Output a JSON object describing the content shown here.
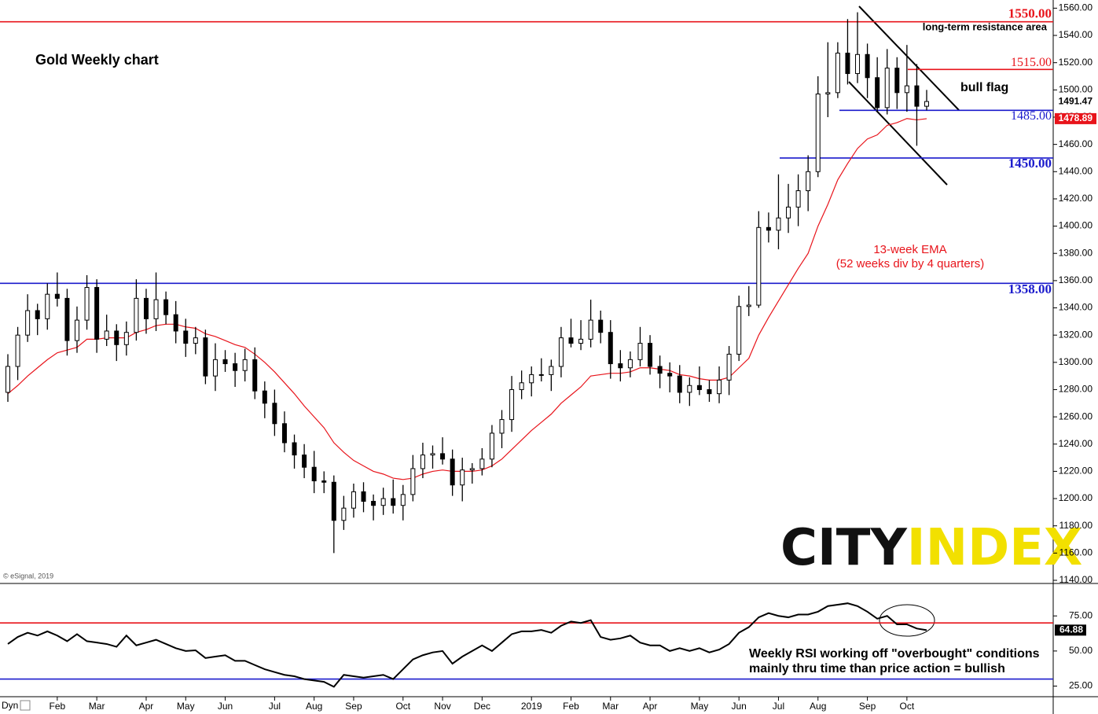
{
  "chart_data": [
    {
      "type": "candlestick",
      "title": "Gold Weekly chart",
      "categories": [
        null,
        null,
        null,
        null,
        null,
        "Feb",
        null,
        null,
        null,
        "Mar",
        null,
        null,
        null,
        null,
        "Apr",
        null,
        null,
        null,
        "May",
        null,
        null,
        null,
        "Jun",
        null,
        null,
        null,
        null,
        "Jul",
        null,
        null,
        null,
        "Aug",
        null,
        null,
        null,
        "Sep",
        null,
        null,
        null,
        null,
        "Oct",
        null,
        null,
        null,
        "Nov",
        null,
        null,
        null,
        "Dec",
        null,
        null,
        null,
        null,
        "2019",
        null,
        null,
        null,
        "Feb",
        null,
        null,
        null,
        "Mar",
        null,
        null,
        null,
        "Apr",
        null,
        null,
        null,
        null,
        "May",
        null,
        null,
        null,
        "Jun",
        null,
        null,
        null,
        "Jul",
        null,
        null,
        null,
        "Aug",
        null,
        null,
        null,
        null,
        "Sep",
        null,
        null,
        null,
        "Oct",
        null,
        null
      ],
      "open": [
        1278,
        1297,
        1320,
        1338,
        1332,
        1350,
        1347,
        1316,
        1331,
        1355,
        1317,
        1323,
        1313,
        1322,
        1347,
        1332,
        1346,
        1335,
        1323,
        1314,
        1318,
        1290,
        1302,
        1299,
        1294,
        1302,
        1279,
        1270,
        1255,
        1241,
        1232,
        1223,
        1213,
        1212,
        1184,
        1193,
        1205,
        1198,
        1195,
        1200,
        1195,
        1203,
        1222,
        1232,
        1233,
        1229,
        1210,
        1221,
        1222,
        1229,
        1248,
        1258,
        1280,
        1285,
        1291,
        1291,
        1297,
        1318,
        1314,
        1317,
        1331,
        1322,
        1299,
        1296,
        1302,
        1314,
        1297,
        1292,
        1290,
        1278,
        1283,
        1280,
        1277,
        1287,
        1306,
        1341,
        1342,
        1399,
        1397,
        1406,
        1414,
        1426,
        1440,
        1497,
        1498,
        1527,
        1512,
        1526,
        1509,
        1487,
        1516,
        1498,
        1503,
        1488
      ],
      "high": [
        1306,
        1326,
        1350,
        1343,
        1358,
        1366,
        1354,
        1341,
        1364,
        1361,
        1335,
        1328,
        1330,
        1361,
        1354,
        1366,
        1352,
        1345,
        1332,
        1326,
        1324,
        1314,
        1309,
        1307,
        1310,
        1311,
        1286,
        1280,
        1264,
        1247,
        1240,
        1235,
        1220,
        1217,
        1202,
        1211,
        1212,
        1203,
        1208,
        1214,
        1210,
        1232,
        1241,
        1239,
        1245,
        1236,
        1230,
        1226,
        1237,
        1254,
        1265,
        1290,
        1294,
        1297,
        1303,
        1302,
        1326,
        1332,
        1331,
        1346,
        1338,
        1331,
        1309,
        1308,
        1326,
        1320,
        1305,
        1300,
        1298,
        1289,
        1297,
        1287,
        1297,
        1312,
        1349,
        1356,
        1411,
        1410,
        1438,
        1431,
        1438,
        1452,
        1510,
        1535,
        1535,
        1552,
        1557,
        1534,
        1524,
        1530,
        1524,
        1533,
        1519,
        1500
      ],
      "low": [
        1271,
        1287,
        1315,
        1320,
        1324,
        1341,
        1305,
        1307,
        1324,
        1307,
        1312,
        1301,
        1305,
        1316,
        1321,
        1323,
        1328,
        1314,
        1304,
        1306,
        1284,
        1279,
        1293,
        1282,
        1286,
        1273,
        1259,
        1246,
        1234,
        1222,
        1215,
        1204,
        1204,
        1160,
        1177,
        1186,
        1190,
        1184,
        1188,
        1189,
        1184,
        1198,
        1215,
        1222,
        1225,
        1202,
        1198,
        1211,
        1217,
        1223,
        1237,
        1249,
        1273,
        1275,
        1286,
        1279,
        1289,
        1311,
        1309,
        1311,
        1314,
        1288,
        1286,
        1289,
        1297,
        1291,
        1281,
        1278,
        1270,
        1268,
        1276,
        1271,
        1270,
        1276,
        1301,
        1334,
        1340,
        1388,
        1383,
        1395,
        1400,
        1411,
        1436,
        1480,
        1494,
        1504,
        1505,
        1494,
        1484,
        1482,
        1486,
        1484,
        1459,
        1485
      ],
      "close": [
        1297,
        1320,
        1338,
        1332,
        1350,
        1347,
        1316,
        1331,
        1355,
        1317,
        1323,
        1313,
        1322,
        1347,
        1332,
        1346,
        1335,
        1323,
        1314,
        1318,
        1290,
        1302,
        1299,
        1294,
        1302,
        1279,
        1270,
        1255,
        1241,
        1232,
        1223,
        1213,
        1212,
        1184,
        1193,
        1205,
        1198,
        1195,
        1200,
        1195,
        1203,
        1222,
        1232,
        1233,
        1229,
        1210,
        1221,
        1222,
        1229,
        1248,
        1258,
        1280,
        1285,
        1291,
        1291,
        1297,
        1318,
        1314,
        1317,
        1331,
        1322,
        1299,
        1296,
        1302,
        1314,
        1297,
        1292,
        1290,
        1278,
        1283,
        1280,
        1277,
        1287,
        1306,
        1341,
        1342,
        1399,
        1397,
        1406,
        1414,
        1426,
        1440,
        1497,
        1498,
        1527,
        1512,
        1526,
        1509,
        1487,
        1516,
        1498,
        1503,
        1488,
        1491.47
      ],
      "ema": [
        1277,
        1283,
        1290,
        1296,
        1302,
        1307,
        1309,
        1311,
        1317,
        1317,
        1318,
        1318,
        1318,
        1322,
        1324,
        1327,
        1328,
        1328,
        1326,
        1325,
        1321,
        1319,
        1316,
        1313,
        1311,
        1306,
        1300,
        1293,
        1285,
        1277,
        1268,
        1260,
        1252,
        1241,
        1234,
        1228,
        1224,
        1220,
        1218,
        1215,
        1214,
        1215,
        1218,
        1220,
        1221,
        1220,
        1220,
        1220,
        1221,
        1224,
        1229,
        1236,
        1243,
        1250,
        1256,
        1262,
        1270,
        1276,
        1282,
        1290,
        1291,
        1292,
        1292,
        1293,
        1296,
        1296,
        1295,
        1294,
        1291,
        1290,
        1288,
        1287,
        1287,
        1289,
        1296,
        1303,
        1320,
        1333,
        1345,
        1357,
        1369,
        1380,
        1400,
        1416,
        1434,
        1446,
        1457,
        1464,
        1467,
        1474,
        1476,
        1479,
        1478,
        1478.89
      ],
      "ema_color": "#e8141b",
      "ylim": [
        1140,
        1566
      ],
      "yticks": [
        {
          "value": 1140,
          "label": "1140.00"
        },
        {
          "value": 1160,
          "label": "1160.00"
        },
        {
          "value": 1180,
          "label": "1180.00"
        },
        {
          "value": 1200,
          "label": "1200.00"
        },
        {
          "value": 1220,
          "label": "1220.00"
        },
        {
          "value": 1240,
          "label": "1240.00"
        },
        {
          "value": 1260,
          "label": "1260.00"
        },
        {
          "value": 1280,
          "label": "1280.00"
        },
        {
          "value": 1300,
          "label": "1300.00"
        },
        {
          "value": 1320,
          "label": "1320.00"
        },
        {
          "value": 1340,
          "label": "1340.00"
        },
        {
          "value": 1360,
          "label": "1360.00"
        },
        {
          "value": 1380,
          "label": "1380.00"
        },
        {
          "value": 1400,
          "label": "1400.00"
        },
        {
          "value": 1420,
          "label": "1420.00"
        },
        {
          "value": 1440,
          "label": "1440.00"
        },
        {
          "value": 1460,
          "label": "1460.00"
        },
        {
          "value": 1480,
          "label": "1480.00"
        },
        {
          "value": 1500,
          "label": "1500.00"
        },
        {
          "value": 1520,
          "label": "1520.00"
        },
        {
          "value": 1540,
          "label": "1540.00"
        },
        {
          "value": 1560,
          "label": "1560.00"
        }
      ],
      "levels": [
        {
          "value": 1550,
          "label": "1550.00",
          "color": "#e8141b"
        },
        {
          "value": 1515,
          "label": "1515.00",
          "color": "#e8141b"
        },
        {
          "value": 1485,
          "label": "1485.00",
          "color": "#1a1acc"
        },
        {
          "value": 1450,
          "label": "1450.00",
          "color": "#1a1acc"
        },
        {
          "value": 1358,
          "label": "1358.00",
          "color": "#1a1acc"
        }
      ],
      "annotations": {
        "resistance": "long-term resistance area",
        "flag": "bull flag",
        "ema_1": "13-week EMA",
        "ema_2": "(52 weeks div by 4 quarters)",
        "source": "© eSignal, 2019"
      },
      "logo": {
        "left": "CITY",
        "right": "INDEX"
      }
    },
    {
      "type": "line",
      "values": [
        55,
        60,
        63,
        61,
        64,
        61,
        57,
        62,
        57,
        56,
        55,
        53,
        61,
        54,
        56,
        58,
        55,
        52,
        50,
        50.5,
        45,
        46,
        47,
        43,
        43,
        40,
        37,
        35,
        33,
        32,
        30,
        29,
        28,
        24.5,
        33,
        32,
        31,
        32,
        33,
        30,
        37,
        44,
        47,
        49,
        50,
        41,
        46,
        50,
        54,
        50,
        56,
        62,
        64,
        64,
        65,
        63,
        68,
        71,
        70,
        72,
        60,
        58,
        59,
        61,
        56,
        54,
        54,
        50,
        52,
        50,
        52,
        49,
        51,
        55,
        63,
        67,
        74,
        77,
        75,
        74,
        76,
        76,
        78,
        82,
        83,
        84,
        82,
        78,
        73,
        75,
        69,
        69,
        66,
        64.88
      ],
      "color": "#000000",
      "ylim": [
        18,
        97
      ],
      "yticks": [
        {
          "value": 25,
          "label": "25.00"
        },
        {
          "value": 50,
          "label": "50.00"
        },
        {
          "value": 75,
          "label": "75.00"
        }
      ],
      "levels": [
        70,
        30
      ],
      "level_colors": [
        "#e8141b",
        "#1a1acc"
      ],
      "annotations": [
        "Weekly RSI working off \"overbought\" conditions",
        "mainly thru time than price action = bullish"
      ],
      "corner": "Dyn"
    }
  ]
}
